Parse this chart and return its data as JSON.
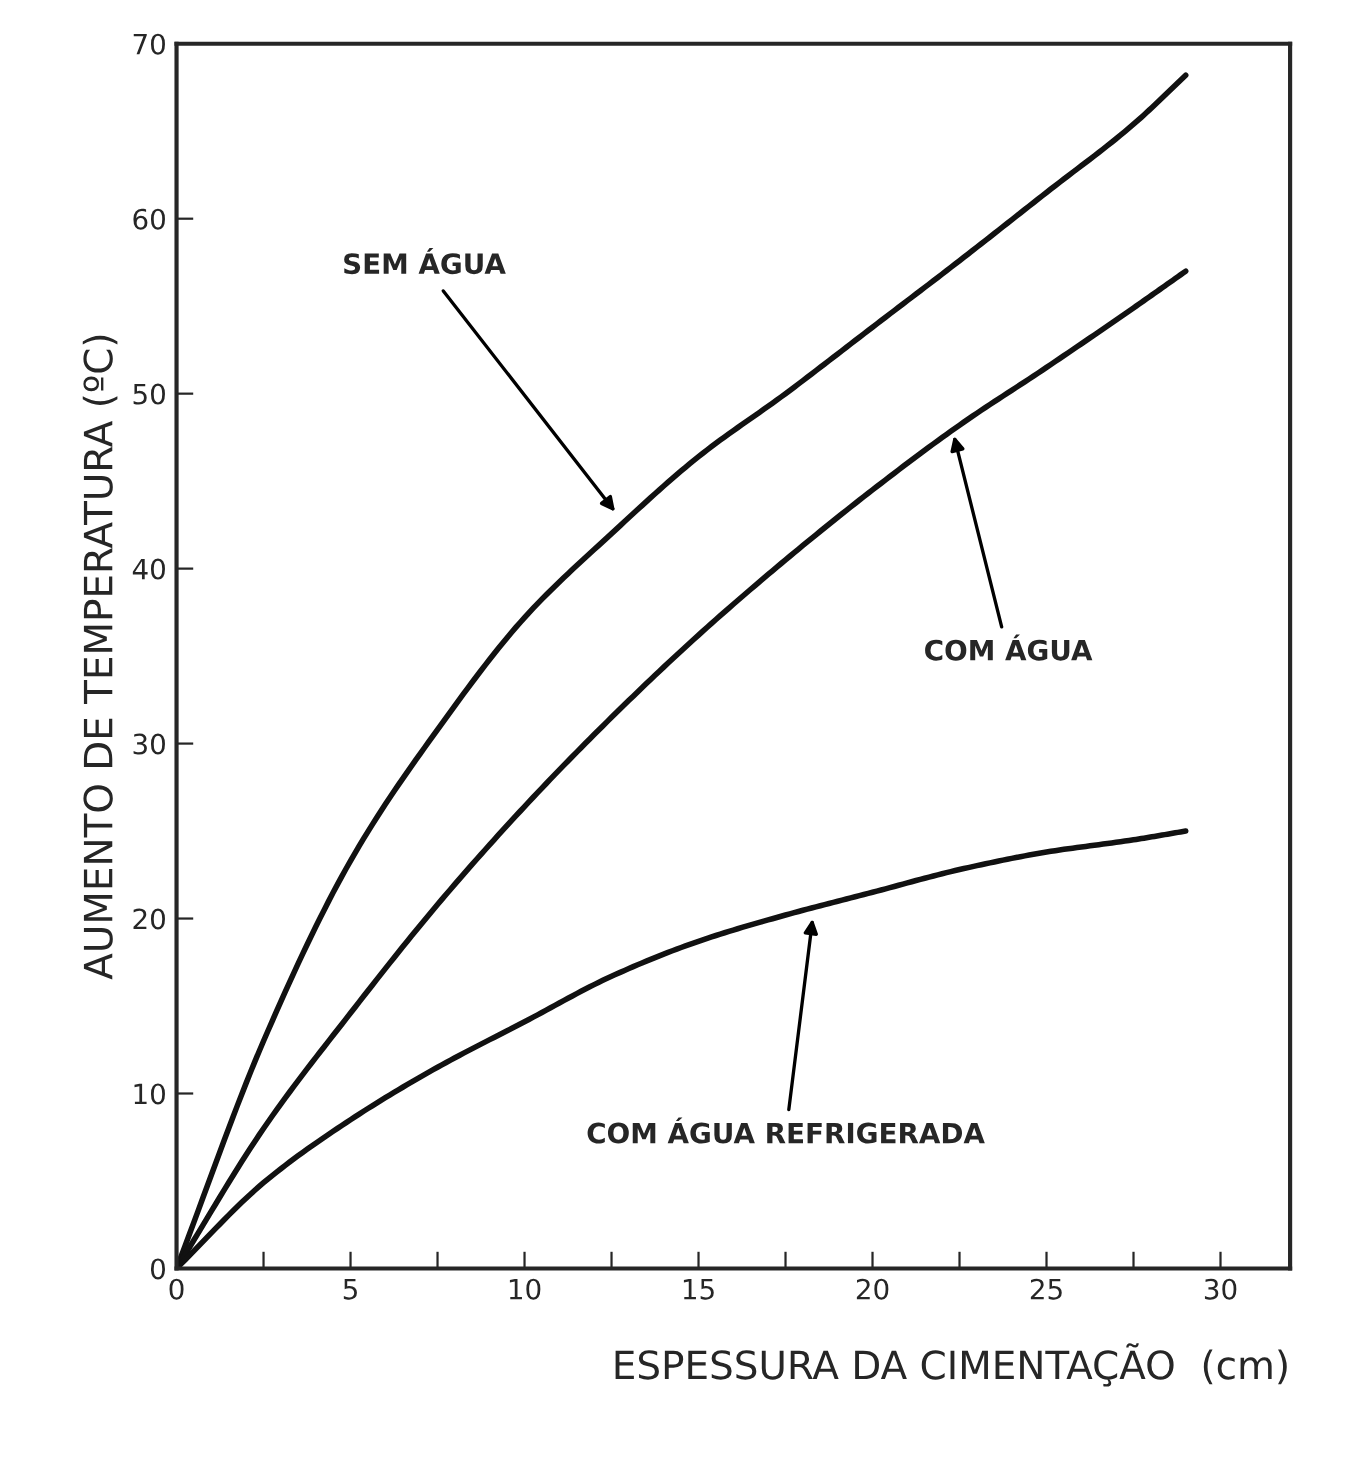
{
  "chart_data": {
    "type": "line",
    "xlabel": "ESPESSURA DA CIMENTAÇÃO  (cm)",
    "ylabel": "AUMENTO DE TEMPERATURA (ºC)",
    "x": [
      0,
      2.5,
      5,
      7.5,
      10,
      12.5,
      15,
      17.5,
      20,
      22.5,
      25,
      27.5,
      29
    ],
    "series": [
      {
        "color": "#111111",
        "values": [
          0,
          13,
          23.3,
          30.8,
          37.2,
          42,
          46.4,
          50,
          53.8,
          57.6,
          61.5,
          65.4,
          68.2
        ]
      },
      {
        "color": "#111111",
        "values": [
          0,
          8,
          14.6,
          20.8,
          26.4,
          31.5,
          36.2,
          40.5,
          44.5,
          48.2,
          51.5,
          54.9,
          57
        ]
      },
      {
        "color": "#111111",
        "values": [
          0,
          4.9,
          8.5,
          11.5,
          14.1,
          16.7,
          18.7,
          20.2,
          21.5,
          22.8,
          23.8,
          24.5,
          25
        ]
      }
    ],
    "xlim": [
      0,
      32
    ],
    "ylim": [
      0,
      70
    ],
    "xticks": [
      0,
      {
        "value": 2.5,
        "label": null
      },
      5,
      {
        "value": 7.5,
        "label": null
      },
      10,
      {
        "value": 12.5,
        "label": null
      },
      15,
      {
        "value": 17.5,
        "label": null
      },
      20,
      {
        "value": 22.5,
        "label": null
      },
      25,
      {
        "value": 27.5,
        "label": null
      },
      30
    ],
    "yticks": [
      0,
      10,
      20,
      30,
      40,
      50,
      60,
      70
    ],
    "annotations": [
      {
        "text": "SEM ÁGUA",
        "x": 12.7,
        "y": 43
      },
      {
        "text": "COM ÁGUA",
        "x": 22.3,
        "y": 47.9
      },
      {
        "text": "COM ÁGUA REFRIGERADA",
        "x": 18.3,
        "y": 20.3
      }
    ],
    "grid": false,
    "legend": false,
    "marker": "none",
    "line_style": "solid"
  }
}
